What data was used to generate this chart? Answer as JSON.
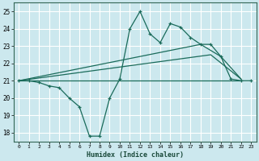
{
  "title": "",
  "xlabel": "Humidex (Indice chaleur)",
  "bg_color": "#cce8ee",
  "grid_color": "#ffffff",
  "line_color": "#1a6b5a",
  "xlim": [
    -0.5,
    23.5
  ],
  "ylim": [
    17.5,
    25.5
  ],
  "xticks": [
    0,
    1,
    2,
    3,
    4,
    5,
    6,
    7,
    8,
    9,
    10,
    11,
    12,
    13,
    14,
    15,
    16,
    17,
    18,
    19,
    20,
    21,
    22,
    23
  ],
  "yticks": [
    18,
    19,
    20,
    21,
    22,
    23,
    24,
    25
  ],
  "line1_x": [
    0,
    1,
    2,
    3,
    4,
    5,
    6,
    7,
    8,
    9,
    10,
    11,
    12,
    13,
    14,
    15,
    16,
    17,
    18,
    19,
    20,
    21,
    22,
    23
  ],
  "line1_y": [
    21.0,
    21.0,
    20.9,
    20.7,
    20.6,
    20.0,
    19.5,
    17.8,
    17.8,
    20.0,
    21.1,
    24.0,
    25.0,
    23.7,
    23.2,
    24.3,
    24.1,
    23.5,
    23.1,
    23.1,
    22.4,
    21.1,
    21.0,
    21.0
  ],
  "line2_x": [
    0,
    22
  ],
  "line2_y": [
    21.0,
    21.0
  ],
  "line3_x": [
    0,
    19,
    22
  ],
  "line3_y": [
    21.0,
    22.5,
    21.1
  ],
  "line4_x": [
    0,
    18,
    20,
    22
  ],
  "line4_y": [
    21.0,
    23.1,
    22.4,
    21.1
  ]
}
